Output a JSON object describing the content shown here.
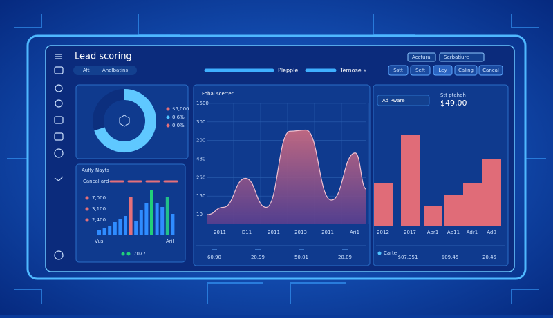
{
  "header": {
    "title": "Lead scoring",
    "tabs": [
      "Aft",
      "Andlbatins"
    ],
    "nav": [
      "Plepple",
      "Ternose »"
    ],
    "badges": [
      "Acctura",
      "Serbatiure"
    ],
    "buttons": [
      "Sstt",
      "Seft",
      "Ley",
      "Caling",
      "Cancal"
    ]
  },
  "donut": {
    "values": [
      70,
      30
    ],
    "colors": [
      "#5fc8ff",
      "#0c2f7e"
    ],
    "legend": [
      "$5,000",
      "0.6%",
      "0.0%"
    ],
    "legend_colors": [
      "#e5707a",
      "#4fc3ff",
      "#e5707a"
    ]
  },
  "activity": {
    "title": "Aufly Nayts",
    "subtitle": "Cancal ard",
    "y_labels": [
      "7,000",
      "3,100",
      "2,400"
    ],
    "x_labels": [
      "Vus",
      "Aril"
    ],
    "legend": "7077",
    "values": [
      7,
      10,
      13,
      18,
      22,
      27,
      55,
      20,
      35,
      45,
      65,
      45,
      40,
      55,
      30
    ],
    "colors": [
      "#2f8cff",
      "#2f8cff",
      "#2f8cff",
      "#2f8cff",
      "#2f8cff",
      "#2f8cff",
      "#e5707a",
      "#2f8cff",
      "#2f8cff",
      "#2f8cff",
      "#22d07a",
      "#2f8cff",
      "#2f8cff",
      "#22c08a",
      "#2f8cff"
    ],
    "ylim": [
      0,
      70
    ]
  },
  "area_chart": {
    "title": "Fobal scerter",
    "y_labels": [
      "1500",
      "300",
      "200",
      "480",
      "250",
      "150",
      "10"
    ],
    "x_labels": [
      "2011",
      "D11",
      "2011",
      "2013",
      "2011",
      "Ari1"
    ],
    "x": [
      0,
      10,
      24,
      37,
      52,
      62,
      78,
      93,
      100
    ],
    "values": [
      8,
      14,
      38,
      14,
      77,
      78,
      20,
      59,
      29
    ],
    "xlim": [
      0,
      100
    ],
    "ylim": [
      0,
      100
    ],
    "color": "#c46a7c",
    "footer": [
      "60.90",
      "20.99",
      "50.01",
      "20.09"
    ]
  },
  "bar_chart": {
    "title": "Ad Pware",
    "label": "Stt ptehoh",
    "amount": "$49,00",
    "x_labels": [
      "2012",
      "2017",
      "Apr1",
      "Ap11",
      "Adr1",
      "Ad0"
    ],
    "values": [
      62,
      131,
      28,
      44,
      61,
      96
    ],
    "ylim": [
      0,
      200
    ],
    "color": "#e06c78",
    "footer": [
      "Carte",
      "$07.351",
      "$09.45",
      "20.45"
    ]
  }
}
